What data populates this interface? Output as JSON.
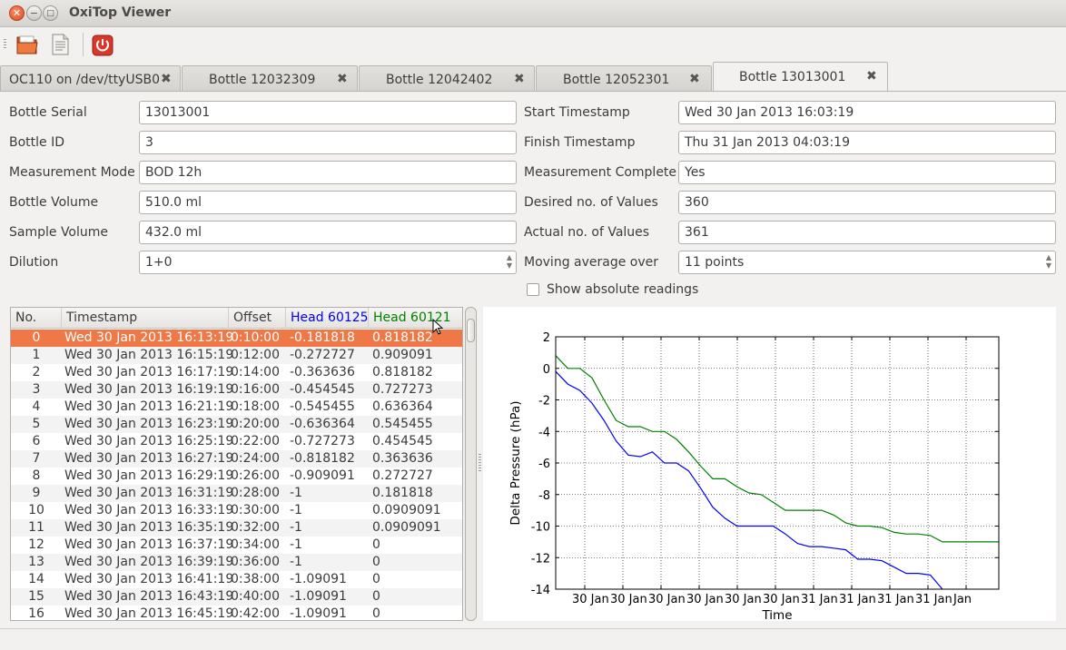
{
  "window": {
    "title": "OxiTop Viewer"
  },
  "toolbar": {
    "items": [
      "folder-open-icon",
      "document-icon",
      "power-icon"
    ]
  },
  "tabs": [
    {
      "label": "OC110 on /dev/ttyUSB0",
      "active": false
    },
    {
      "label": "Bottle 12032309",
      "active": false
    },
    {
      "label": "Bottle 12042402",
      "active": false
    },
    {
      "label": "Bottle 12052301",
      "active": false
    },
    {
      "label": "Bottle 13013001",
      "active": true
    }
  ],
  "fields_left": [
    {
      "label": "Bottle Serial",
      "value": "13013001"
    },
    {
      "label": "Bottle ID",
      "value": "3"
    },
    {
      "label": "Measurement Mode",
      "value": "BOD 12h"
    },
    {
      "label": "Bottle Volume",
      "value": "510.0 ml"
    },
    {
      "label": "Sample Volume",
      "value": "432.0 ml"
    },
    {
      "label": "Dilution",
      "value": "1+0"
    }
  ],
  "fields_right": [
    {
      "label": "Start Timestamp",
      "value": "Wed 30 Jan 2013 16:03:19"
    },
    {
      "label": "Finish Timestamp",
      "value": "Thu 31 Jan 2013 04:03:19"
    },
    {
      "label": "Measurement Complete",
      "value": "Yes"
    },
    {
      "label": "Desired no. of Values",
      "value": "360"
    },
    {
      "label": "Actual no. of Values",
      "value": "361"
    },
    {
      "label": "Moving average over",
      "value": "11 points"
    }
  ],
  "show_absolute": {
    "label": "Show absolute readings",
    "checked": false
  },
  "table": {
    "columns": [
      "No.",
      "Timestamp",
      "Offset",
      "Head 60125",
      "Head 60121"
    ],
    "head_colors": [
      "#0000ee",
      "#008000"
    ],
    "selected_row": 0,
    "rows": [
      [
        "0",
        "Wed 30 Jan 2013 16:13:19",
        "0:10:00",
        "-0.181818",
        "0.818182"
      ],
      [
        "1",
        "Wed 30 Jan 2013 16:15:19",
        "0:12:00",
        "-0.272727",
        "0.909091"
      ],
      [
        "2",
        "Wed 30 Jan 2013 16:17:19",
        "0:14:00",
        "-0.363636",
        "0.818182"
      ],
      [
        "3",
        "Wed 30 Jan 2013 16:19:19",
        "0:16:00",
        "-0.454545",
        "0.727273"
      ],
      [
        "4",
        "Wed 30 Jan 2013 16:21:19",
        "0:18:00",
        "-0.545455",
        "0.636364"
      ],
      [
        "5",
        "Wed 30 Jan 2013 16:23:19",
        "0:20:00",
        "-0.636364",
        "0.545455"
      ],
      [
        "6",
        "Wed 30 Jan 2013 16:25:19",
        "0:22:00",
        "-0.727273",
        "0.454545"
      ],
      [
        "7",
        "Wed 30 Jan 2013 16:27:19",
        "0:24:00",
        "-0.818182",
        "0.363636"
      ],
      [
        "8",
        "Wed 30 Jan 2013 16:29:19",
        "0:26:00",
        "-0.909091",
        "0.272727"
      ],
      [
        "9",
        "Wed 30 Jan 2013 16:31:19",
        "0:28:00",
        "-1",
        "0.181818"
      ],
      [
        "10",
        "Wed 30 Jan 2013 16:33:19",
        "0:30:00",
        "-1",
        "0.0909091"
      ],
      [
        "11",
        "Wed 30 Jan 2013 16:35:19",
        "0:32:00",
        "-1",
        "0.0909091"
      ],
      [
        "12",
        "Wed 30 Jan 2013 16:37:19",
        "0:34:00",
        "-1",
        "0"
      ],
      [
        "13",
        "Wed 30 Jan 2013 16:39:19",
        "0:36:00",
        "-1",
        "0"
      ],
      [
        "14",
        "Wed 30 Jan 2013 16:41:19",
        "0:38:00",
        "-1.09091",
        "0"
      ],
      [
        "15",
        "Wed 30 Jan 2013 16:43:19",
        "0:40:00",
        "-1.09091",
        "0"
      ],
      [
        "16",
        "Wed 30 Jan 2013 16:45:19",
        "0:42:00",
        "-1.09091",
        "0"
      ]
    ]
  },
  "chart_data": {
    "type": "line",
    "title": "",
    "xlabel": "Time",
    "ylabel": "Delta Pressure (hPa)",
    "ylim": [
      -14,
      2
    ],
    "yticks": [
      2,
      0,
      -2,
      -4,
      -6,
      -8,
      -10,
      -12,
      -14
    ],
    "xticklabels": [
      "30 Jan",
      "30 Jan",
      "30 Jan",
      "30 Jan",
      "30 Jan",
      "30 Jan",
      "31 Jan",
      "31 Jan",
      "31 Jan",
      "31 Jan",
      "Jan"
    ],
    "grid": true,
    "series": [
      {
        "name": "Head 60125",
        "color": "#0000ff",
        "x": [
          0,
          0.3,
          0.6,
          0.9,
          1.2,
          1.5,
          1.8,
          2.1,
          2.4,
          2.7,
          3.0,
          3.3,
          3.6,
          3.9,
          4.2,
          4.5,
          4.8,
          5.1,
          5.4,
          5.7,
          6.0,
          6.3,
          6.6,
          6.9,
          7.2,
          7.5,
          7.8,
          8.1,
          8.4,
          8.7,
          9.0,
          9.3,
          9.6
        ],
        "y": [
          -0.2,
          -1.0,
          -1.4,
          -2.2,
          -3.3,
          -4.6,
          -5.5,
          -5.6,
          -5.3,
          -6.0,
          -6.0,
          -6.5,
          -7.6,
          -8.8,
          -9.5,
          -10.0,
          -10.0,
          -10.0,
          -10.0,
          -10.5,
          -11.1,
          -11.3,
          -11.3,
          -11.4,
          -11.5,
          -12.1,
          -12.1,
          -12.2,
          -12.6,
          -13.0,
          -13.0,
          -13.1,
          -14.0
        ]
      },
      {
        "name": "Head 60121",
        "color": "#008000",
        "x": [
          0,
          0.3,
          0.6,
          0.9,
          1.2,
          1.5,
          1.8,
          2.1,
          2.4,
          2.7,
          3.0,
          3.3,
          3.6,
          3.9,
          4.2,
          4.5,
          4.8,
          5.1,
          5.4,
          5.7,
          6.0,
          6.3,
          6.6,
          6.9,
          7.2,
          7.5,
          7.8,
          8.1,
          8.4,
          8.7,
          9.0,
          9.3,
          9.6,
          10.0,
          10.5,
          11.0
        ],
        "y": [
          0.8,
          0.0,
          0.0,
          -0.6,
          -2.0,
          -3.3,
          -3.7,
          -3.7,
          -4.0,
          -4.0,
          -4.5,
          -5.3,
          -6.2,
          -7.0,
          -7.0,
          -7.5,
          -7.9,
          -8.0,
          -8.5,
          -9.0,
          -9.0,
          -9.0,
          -9.0,
          -9.3,
          -9.8,
          -10.0,
          -10.0,
          -10.1,
          -10.4,
          -10.5,
          -10.5,
          -10.6,
          -11.0,
          -11.0,
          -11.0,
          -11.0
        ]
      }
    ]
  }
}
